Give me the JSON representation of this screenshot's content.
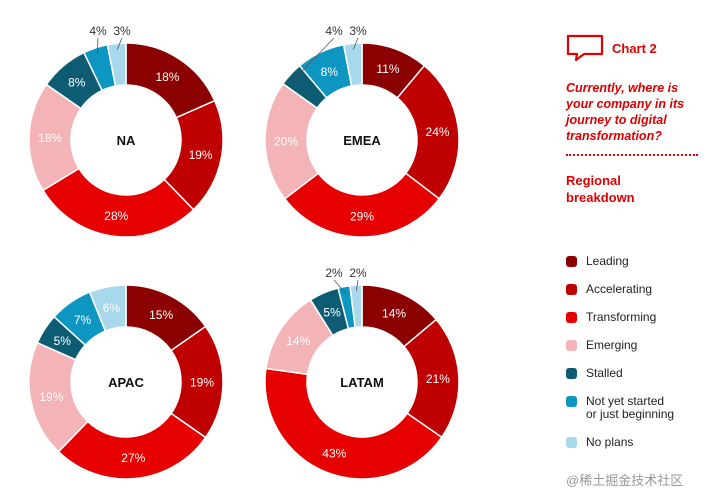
{
  "sidebar": {
    "chart_label": "Chart 2",
    "question_lines": [
      "Currently, where is",
      "your company in its",
      "journey to digital",
      "transformation?"
    ],
    "breakdown_lines": [
      "Regional",
      "breakdown"
    ],
    "icon": "speech-bubble-icon"
  },
  "watermark": "@稀土掘金技术社区",
  "colors": {
    "leading": "#8b0000",
    "accelerating": "#bf0000",
    "transforming": "#e60000",
    "emerging": "#f3b3b7",
    "stalled": "#0d5c73",
    "not_started": "#0e96c3",
    "no_plans": "#a7d8ec"
  },
  "chart_data": {
    "type": "pie",
    "variant": "donut",
    "categories": [
      "Leading",
      "Accelerating",
      "Transforming",
      "Emerging",
      "Stalled",
      "Not yet started or just beginning",
      "No plans"
    ],
    "legend_lines": [
      [
        "Leading"
      ],
      [
        "Accelerating"
      ],
      [
        "Transforming"
      ],
      [
        "Emerging"
      ],
      [
        "Stalled"
      ],
      [
        "Not yet started",
        "or just beginning"
      ],
      [
        "No plans"
      ]
    ],
    "series": [
      {
        "name": "NA",
        "values": [
          18,
          19,
          28,
          18,
          8,
          4,
          3
        ]
      },
      {
        "name": "EMEA",
        "values": [
          11,
          24,
          29,
          20,
          4,
          8,
          3
        ]
      },
      {
        "name": "APAC",
        "values": [
          15,
          19,
          27,
          19,
          5,
          7,
          6
        ]
      },
      {
        "name": "LATAM",
        "values": [
          14,
          21,
          43,
          14,
          5,
          2,
          2
        ]
      }
    ],
    "value_suffix": "%",
    "legend_position": "right"
  }
}
